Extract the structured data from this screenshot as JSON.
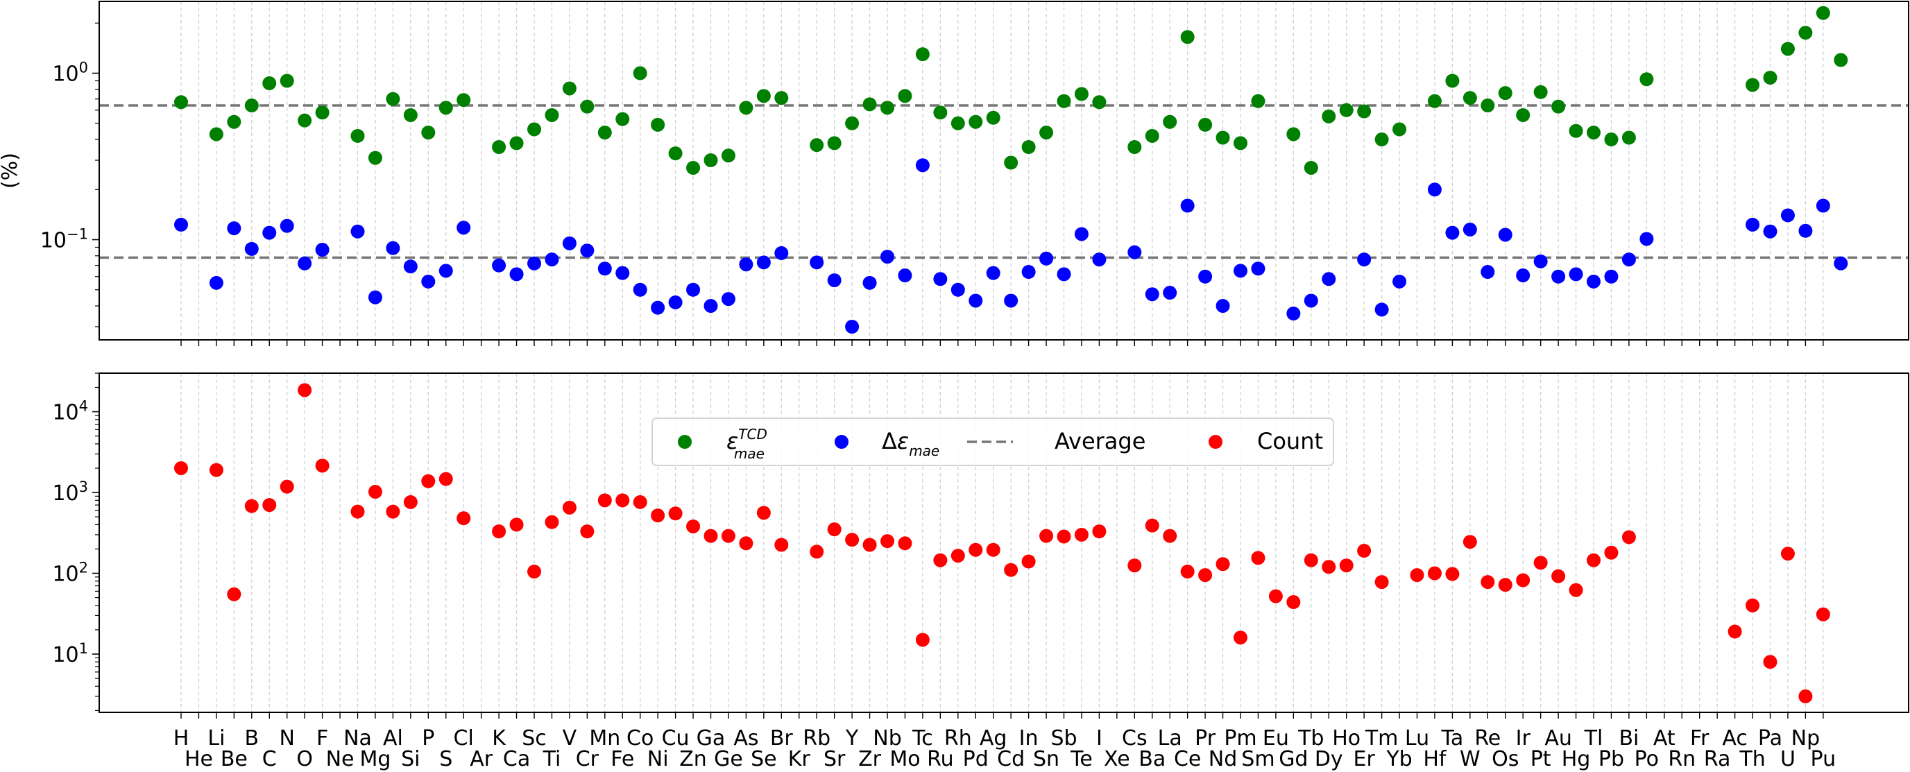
{
  "chart_data": [
    {
      "type": "scatter",
      "panel": "top",
      "ylabel": "(%)",
      "yscale": "log",
      "ylim": [
        0.025,
        2.7
      ],
      "yticks": [
        {
          "value": 1.0,
          "base": "10",
          "exp": "0"
        },
        {
          "value": 0.1,
          "base": "10",
          "exp": "−1"
        }
      ],
      "hlines": [
        0.64,
        0.078
      ],
      "grid": "vertical dashed at each element",
      "elements": [
        "H",
        "He",
        "Li",
        "Be",
        "B",
        "C",
        "N",
        "O",
        "F",
        "Ne",
        "Na",
        "Mg",
        "Al",
        "Si",
        "P",
        "S",
        "Cl",
        "Ar",
        "K",
        "Ca",
        "Sc",
        "Ti",
        "V",
        "Cr",
        "Mn",
        "Fe",
        "Co",
        "Ni",
        "Cu",
        "Zn",
        "Ga",
        "Ge",
        "As",
        "Se",
        "Br",
        "Kr",
        "Rb",
        "Sr",
        "Y",
        "Zr",
        "Nb",
        "Mo",
        "Tc",
        "Ru",
        "Rh",
        "Pd",
        "Ag",
        "Cd",
        "In",
        "Sn",
        "Sb",
        "Te",
        "I",
        "Xe",
        "Cs",
        "Ba",
        "La",
        "Ce",
        "Pr",
        "Nd",
        "Pm",
        "Sm",
        "Eu",
        "Gd",
        "Tb",
        "Dy",
        "Ho",
        "Er",
        "Tm",
        "Yb",
        "Lu",
        "Hf",
        "Ta",
        "W",
        "Re",
        "Os",
        "Ir",
        "Pt",
        "Au",
        "Hg",
        "Tl",
        "Pb",
        "Bi",
        "Po",
        "At",
        "Rn",
        "Fr",
        "Ra",
        "Ac",
        "Th",
        "Pa",
        "U",
        "Np",
        "Pu"
      ],
      "series": [
        {
          "name": "TCD",
          "color": "#008000",
          "values": [
            0.67,
            null,
            0.43,
            0.51,
            0.64,
            0.87,
            0.9,
            0.52,
            0.58,
            null,
            0.42,
            0.31,
            0.7,
            0.56,
            0.44,
            0.62,
            0.69,
            null,
            0.36,
            0.38,
            0.46,
            0.56,
            0.81,
            0.63,
            0.44,
            0.53,
            1.0,
            0.49,
            0.33,
            0.27,
            0.3,
            0.32,
            0.62,
            0.73,
            0.71,
            null,
            0.37,
            0.38,
            0.5,
            0.65,
            0.62,
            0.73,
            1.3,
            0.58,
            0.5,
            0.51,
            0.54,
            0.29,
            0.36,
            0.44,
            0.68,
            0.75,
            0.67,
            null,
            0.36,
            0.42,
            0.51,
            1.65,
            0.49,
            0.41,
            0.38,
            0.68,
            null,
            0.43,
            0.27,
            0.55,
            0.6,
            0.59,
            0.4,
            0.46,
            null,
            0.68,
            0.9,
            0.71,
            0.64,
            0.76,
            0.56,
            0.77,
            0.63,
            0.45,
            0.44,
            0.4,
            0.41,
            0.92,
            null,
            null,
            null,
            null,
            null,
            0.85,
            0.94,
            1.4,
            1.75,
            2.3,
            1.2
          ]
        },
        {
          "name": "delta",
          "color": "#0000ff",
          "values": [
            0.123,
            null,
            0.055,
            0.117,
            0.088,
            0.11,
            0.121,
            0.072,
            0.087,
            null,
            0.112,
            0.045,
            0.089,
            0.069,
            0.056,
            0.065,
            0.118,
            null,
            0.07,
            0.062,
            0.072,
            0.076,
            0.095,
            0.086,
            0.067,
            0.063,
            0.05,
            0.039,
            0.042,
            0.05,
            0.04,
            0.044,
            0.071,
            0.073,
            0.083,
            null,
            0.073,
            0.057,
            0.03,
            0.055,
            0.079,
            0.061,
            0.28,
            0.058,
            0.05,
            0.043,
            0.063,
            0.043,
            0.064,
            0.077,
            0.062,
            0.108,
            0.076,
            null,
            0.084,
            0.047,
            0.048,
            0.16,
            0.06,
            0.04,
            0.065,
            0.067,
            null,
            0.036,
            0.043,
            0.058,
            null,
            0.076,
            0.038,
            0.056,
            null,
            0.2,
            0.11,
            0.115,
            0.064,
            0.107,
            0.061,
            0.074,
            0.06,
            0.062,
            0.056,
            0.06,
            0.076,
            0.101,
            null,
            null,
            null,
            null,
            null,
            0.123,
            0.112,
            0.14,
            0.113,
            0.16,
            0.072
          ]
        }
      ]
    },
    {
      "type": "scatter",
      "panel": "bottom",
      "yscale": "log",
      "ylim": [
        1.9,
        30000
      ],
      "yticks": [
        {
          "value": 10000,
          "base": "10",
          "exp": "4"
        },
        {
          "value": 1000,
          "base": "10",
          "exp": "3"
        },
        {
          "value": 100,
          "base": "10",
          "exp": "2"
        },
        {
          "value": 10,
          "base": "10",
          "exp": "1"
        }
      ],
      "grid": "vertical dashed at each element",
      "series": [
        {
          "name": "Count",
          "color": "#ff0000",
          "values": [
            2000,
            null,
            1900,
            55,
            680,
            700,
            1180,
            18500,
            2150,
            null,
            580,
            1020,
            580,
            760,
            1380,
            1470,
            480,
            null,
            330,
            400,
            105,
            430,
            650,
            330,
            800,
            800,
            760,
            520,
            550,
            380,
            290,
            290,
            235,
            560,
            225,
            null,
            185,
            350,
            260,
            225,
            250,
            235,
            15,
            145,
            165,
            195,
            195,
            110,
            140,
            290,
            285,
            300,
            330,
            null,
            125,
            390,
            290,
            105,
            95,
            130,
            16,
            155,
            52,
            44,
            145,
            120,
            125,
            190,
            78,
            null,
            95,
            100,
            98,
            245,
            78,
            72,
            82,
            135,
            92,
            62,
            145,
            180,
            280,
            null,
            null,
            null,
            null,
            null,
            19,
            40,
            8,
            175,
            3,
            31
          ]
        }
      ]
    }
  ],
  "legend": {
    "placement": "upper center",
    "items": [
      {
        "key": "tcd",
        "color": "#008000",
        "symbol": "ε",
        "sub": "mae",
        "sup": "TCD",
        "prefix": ""
      },
      {
        "key": "delta",
        "color": "#0000ff",
        "symbol": "ε",
        "sub": "mae",
        "sup": "",
        "prefix": "Δ"
      },
      {
        "key": "average",
        "color": "#777777",
        "label": "Average"
      },
      {
        "key": "count",
        "color": "#ff0000",
        "label": "Count"
      }
    ]
  }
}
